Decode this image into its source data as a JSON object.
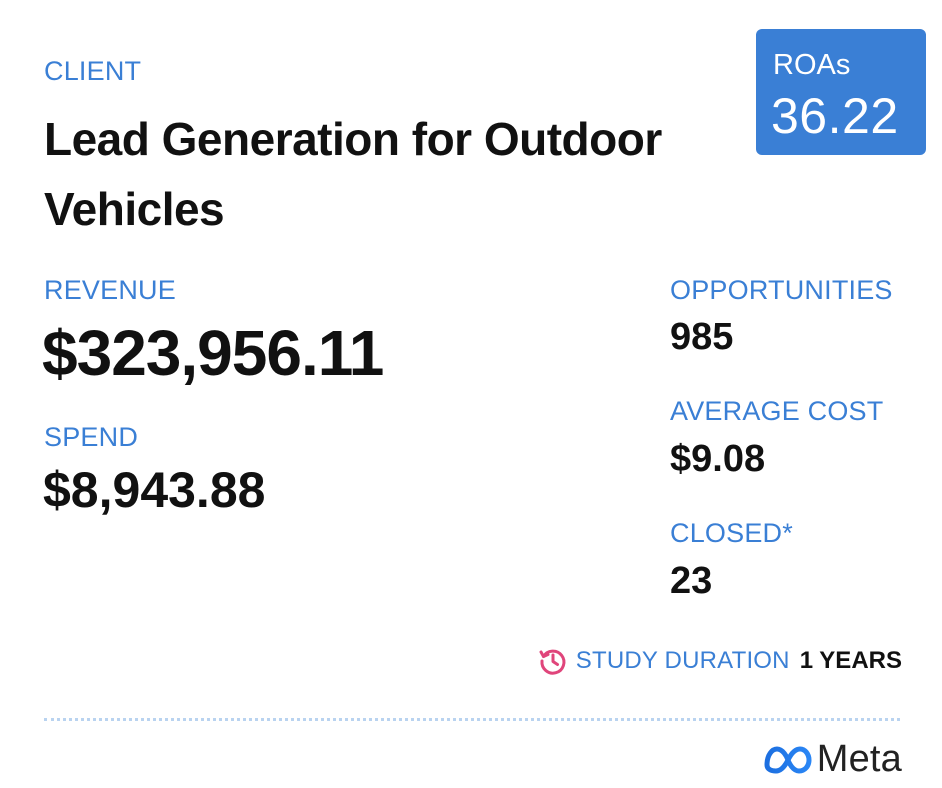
{
  "client": {
    "label": "CLIENT",
    "title": "Lead Generation for Outdoor Vehicles"
  },
  "roas": {
    "label": "ROAs",
    "value": "36.22"
  },
  "revenue": {
    "label": "REVENUE",
    "value": "$323,956.11"
  },
  "spend": {
    "label": "SPEND",
    "value": "$8,943.88"
  },
  "opportunities": {
    "label": "OPPORTUNITIES",
    "value": "985"
  },
  "average_cost": {
    "label": "AVERAGE COST",
    "value": "$9.08"
  },
  "closed": {
    "label": "CLOSED*",
    "value": "23"
  },
  "study_duration": {
    "icon": "history-icon",
    "label": "STUDY DURATION",
    "value": "1 YEARS"
  },
  "brand": {
    "icon": "meta-infinity-icon",
    "name": "Meta"
  },
  "colors": {
    "accent": "#3a7fd5",
    "icon_pink": "#e0457b",
    "text": "#111111",
    "divider": "#b9d3f0"
  }
}
